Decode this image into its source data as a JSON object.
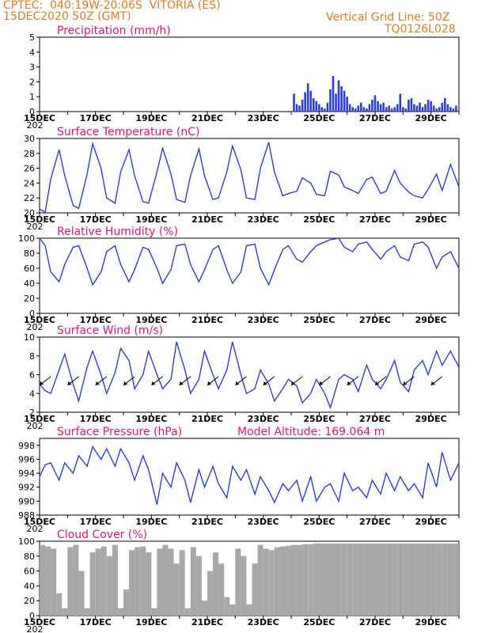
{
  "header": {
    "line1": "CPTEC:  040:19W-20:06S  VITORIA (ES)",
    "line2": "15DEC2020 50Z (GMT)",
    "right1": "Vertical Grid Line: 50Z",
    "right2": "TQ0126L028"
  },
  "colors": {
    "header": "#e07c1c",
    "title": "#e0137c",
    "line": "#2a3fd6",
    "cloud": "#a8a8a8"
  },
  "x_ticks": [
    "15DEC",
    "17DEC",
    "19DEC",
    "21DEC",
    "23DEC",
    "25DEC",
    "27DEC",
    "29DEC"
  ],
  "x_sub_label": "202",
  "chart_data": [
    {
      "type": "bar",
      "title": "Precipitation (mm/h)",
      "ylim": [
        0,
        5
      ],
      "y_ticks": [
        "0",
        "1",
        "2",
        "3",
        "4",
        "5"
      ],
      "x": [
        24.1,
        24.2,
        24.3,
        24.4,
        24.5,
        24.6,
        24.7,
        24.8,
        24.9,
        25.0,
        25.1,
        25.2,
        25.3,
        25.4,
        25.5,
        25.6,
        25.7,
        25.8,
        25.9,
        26.0,
        26.1,
        26.2,
        26.3,
        26.4,
        26.5,
        26.6,
        26.7,
        26.8,
        26.9,
        27.0,
        27.1,
        27.2,
        27.3,
        27.4,
        27.5,
        27.6,
        27.7,
        27.8,
        27.9,
        28.0,
        28.1,
        28.2,
        28.3,
        28.4,
        28.5,
        28.6,
        28.7,
        28.8,
        28.9,
        29.0,
        29.1,
        29.2,
        29.3,
        29.4,
        29.5,
        29.6,
        29.7,
        29.8,
        29.9
      ],
      "values": [
        1.2,
        0.5,
        0.4,
        0.8,
        1.3,
        1.9,
        1.4,
        0.9,
        0.7,
        0.5,
        0.3,
        0.2,
        0.6,
        1.5,
        2.4,
        1.2,
        2.1,
        1.7,
        1.4,
        1.0,
        0.5,
        0.3,
        0.2,
        0.4,
        0.6,
        0.3,
        0.2,
        0.5,
        0.8,
        1.1,
        0.7,
        0.5,
        0.6,
        0.3,
        0.4,
        0.2,
        0.3,
        0.5,
        1.2,
        0.3,
        0.2,
        0.8,
        0.9,
        0.5,
        0.4,
        0.6,
        0.3,
        0.5,
        0.8,
        0.7,
        0.4,
        0.2,
        0.3,
        0.6,
        0.9,
        0.5,
        0.3,
        0.2,
        0.4
      ]
    },
    {
      "type": "line",
      "title": "Surface Temperature (nC)",
      "ylim": [
        20,
        30
      ],
      "y_ticks": [
        "20",
        "22",
        "24",
        "26",
        "28",
        "30"
      ],
      "x": [
        15.0,
        15.2,
        15.4,
        15.7,
        15.9,
        16.2,
        16.4,
        16.7,
        16.9,
        17.2,
        17.4,
        17.7,
        17.9,
        18.2,
        18.4,
        18.7,
        18.9,
        19.2,
        19.4,
        19.7,
        19.9,
        20.2,
        20.4,
        20.7,
        20.9,
        21.2,
        21.4,
        21.7,
        21.9,
        22.2,
        22.4,
        22.7,
        22.9,
        23.2,
        23.4,
        23.7,
        23.9,
        24.2,
        24.4,
        24.7,
        24.9,
        25.2,
        25.4,
        25.7,
        25.9,
        26.2,
        26.4,
        26.7,
        26.9,
        27.2,
        27.4,
        27.7,
        27.9,
        28.2,
        28.4,
        28.7,
        28.9,
        29.2,
        29.4,
        29.7,
        30.0
      ],
      "values": [
        20.5,
        20.1,
        24.5,
        28.5,
        25.0,
        21.0,
        20.6,
        25.2,
        29.3,
        26.0,
        22.0,
        21.3,
        25.5,
        28.5,
        25.0,
        21.5,
        21.3,
        25.5,
        28.7,
        25.2,
        21.8,
        21.4,
        25.0,
        28.6,
        25.0,
        21.8,
        22.0,
        25.5,
        29.0,
        25.8,
        22.0,
        21.8,
        26.0,
        29.5,
        25.5,
        22.3,
        22.6,
        22.9,
        24.7,
        24.0,
        22.5,
        22.3,
        25.6,
        25.1,
        23.5,
        23.0,
        22.6,
        24.5,
        24.8,
        22.6,
        22.9,
        25.7,
        24.0,
        22.8,
        22.3,
        22.0,
        23.2,
        25.2,
        23.0,
        26.5,
        23.5
      ]
    },
    {
      "type": "line",
      "title": "Relative Humidity (%)",
      "ylim": [
        0,
        100
      ],
      "y_ticks": [
        "0",
        "20",
        "40",
        "60",
        "80",
        "100"
      ],
      "x": [
        15.0,
        15.2,
        15.4,
        15.7,
        15.9,
        16.2,
        16.4,
        16.7,
        16.9,
        17.2,
        17.4,
        17.7,
        17.9,
        18.2,
        18.4,
        18.7,
        18.9,
        19.2,
        19.4,
        19.7,
        19.9,
        20.2,
        20.4,
        20.7,
        20.9,
        21.2,
        21.4,
        21.7,
        21.9,
        22.2,
        22.4,
        22.7,
        22.9,
        23.2,
        23.4,
        23.7,
        23.9,
        24.2,
        24.4,
        24.7,
        24.9,
        25.2,
        25.4,
        25.7,
        25.9,
        26.2,
        26.4,
        26.7,
        26.9,
        27.2,
        27.4,
        27.7,
        27.9,
        28.2,
        28.4,
        28.7,
        28.9,
        29.2,
        29.4,
        29.7,
        30.0
      ],
      "values": [
        100,
        90,
        55,
        42,
        65,
        88,
        90,
        60,
        38,
        55,
        82,
        90,
        65,
        42,
        58,
        88,
        85,
        60,
        40,
        58,
        90,
        92,
        65,
        42,
        58,
        85,
        90,
        58,
        40,
        55,
        90,
        92,
        60,
        38,
        58,
        85,
        90,
        72,
        68,
        82,
        90,
        95,
        98,
        100,
        88,
        82,
        92,
        95,
        85,
        72,
        82,
        90,
        75,
        70,
        92,
        95,
        88,
        60,
        75,
        82,
        60
      ]
    },
    {
      "type": "line",
      "title": "Surface Wind (m/s)",
      "ylim": [
        2,
        10
      ],
      "y_ticks": [
        "2",
        "4",
        "6",
        "8",
        "10"
      ],
      "x": [
        15.0,
        15.2,
        15.4,
        15.7,
        15.9,
        16.2,
        16.4,
        16.7,
        16.9,
        17.2,
        17.4,
        17.7,
        17.9,
        18.2,
        18.4,
        18.7,
        18.9,
        19.2,
        19.4,
        19.7,
        19.9,
        20.2,
        20.4,
        20.7,
        20.9,
        21.2,
        21.4,
        21.7,
        21.9,
        22.2,
        22.4,
        22.7,
        22.9,
        23.2,
        23.4,
        23.7,
        23.9,
        24.2,
        24.4,
        24.7,
        24.9,
        25.2,
        25.4,
        25.7,
        25.9,
        26.2,
        26.4,
        26.7,
        26.9,
        27.2,
        27.4,
        27.7,
        27.9,
        28.2,
        28.4,
        28.7,
        28.9,
        29.2,
        29.4,
        29.7,
        30.0
      ],
      "values": [
        5.0,
        4.3,
        4.0,
        6.5,
        8.2,
        5.0,
        3.2,
        6.8,
        8.5,
        6.0,
        4.0,
        6.2,
        8.8,
        7.5,
        4.5,
        6.0,
        8.5,
        6.0,
        4.5,
        5.5,
        9.5,
        6.5,
        4.0,
        5.5,
        8.5,
        6.0,
        4.5,
        6.5,
        9.5,
        6.0,
        4.0,
        4.5,
        6.5,
        5.0,
        3.2,
        4.5,
        5.5,
        4.8,
        3.0,
        4.0,
        5.5,
        4.0,
        2.5,
        5.5,
        6.0,
        5.5,
        4.2,
        7.0,
        5.5,
        4.5,
        5.5,
        7.5,
        5.2,
        4.2,
        6.5,
        7.5,
        6.0,
        8.5,
        7.0,
        8.5,
        6.8
      ]
    },
    {
      "type": "line",
      "title": "Surface Pressure (hPa)",
      "annotation": "Model Altitude: 169.064  m",
      "ylim": [
        988,
        999
      ],
      "y_ticks": [
        "988",
        "990",
        "992",
        "994",
        "996",
        "998"
      ],
      "x": [
        15.0,
        15.2,
        15.4,
        15.7,
        15.9,
        16.2,
        16.4,
        16.7,
        16.9,
        17.2,
        17.4,
        17.7,
        17.9,
        18.2,
        18.4,
        18.7,
        18.9,
        19.2,
        19.4,
        19.7,
        19.9,
        20.2,
        20.4,
        20.7,
        20.9,
        21.2,
        21.4,
        21.7,
        21.9,
        22.2,
        22.4,
        22.7,
        22.9,
        23.2,
        23.4,
        23.7,
        23.9,
        24.2,
        24.4,
        24.7,
        24.9,
        25.2,
        25.4,
        25.7,
        25.9,
        26.2,
        26.4,
        26.7,
        26.9,
        27.2,
        27.4,
        27.7,
        27.9,
        28.2,
        28.4,
        28.7,
        28.9,
        29.2,
        29.4,
        29.7,
        30.0
      ],
      "values": [
        993.5,
        995.2,
        995.5,
        993.0,
        995.5,
        994.0,
        996.5,
        995.0,
        997.8,
        996.0,
        997.5,
        995.0,
        997.5,
        995.5,
        993.0,
        996.5,
        994.5,
        989.5,
        994.0,
        992.0,
        995.5,
        993.0,
        989.8,
        994.5,
        992.0,
        995.0,
        992.5,
        990.5,
        995.0,
        993.0,
        994.5,
        991.0,
        993.5,
        991.5,
        989.8,
        992.5,
        991.5,
        993.0,
        990.0,
        993.5,
        990.0,
        992.0,
        992.5,
        990.0,
        994.0,
        991.5,
        992.0,
        990.5,
        993.0,
        991.0,
        994.0,
        991.5,
        993.5,
        991.5,
        992.5,
        990.5,
        995.5,
        992.0,
        997.0,
        993.0,
        995.5
      ]
    },
    {
      "type": "bar",
      "title": "Cloud Cover (%)",
      "ylim": [
        0,
        100
      ],
      "y_ticks": [
        "0",
        "20",
        "40",
        "60",
        "80",
        "100"
      ],
      "x": [
        15.1,
        15.3,
        15.5,
        15.7,
        15.9,
        16.1,
        16.3,
        16.5,
        16.7,
        16.9,
        17.1,
        17.3,
        17.5,
        17.7,
        17.9,
        18.1,
        18.3,
        18.5,
        18.7,
        18.9,
        19.1,
        19.3,
        19.5,
        19.7,
        19.9,
        20.1,
        20.3,
        20.5,
        20.7,
        20.9,
        21.1,
        21.3,
        21.5,
        21.7,
        21.9,
        22.1,
        22.3,
        22.5,
        22.7,
        22.9,
        23.1,
        23.3,
        23.5,
        23.7,
        23.9,
        24.1,
        24.3,
        24.5,
        24.7,
        24.9,
        25.1,
        25.3,
        25.5,
        25.7,
        25.9,
        26.1,
        26.3,
        26.5,
        26.7,
        26.9,
        27.1,
        27.3,
        27.5,
        27.7,
        27.9,
        28.1,
        28.3,
        28.5,
        28.7,
        28.9,
        29.1,
        29.3,
        29.5,
        29.7,
        29.9
      ],
      "values": [
        95,
        93,
        90,
        30,
        10,
        92,
        95,
        60,
        10,
        85,
        90,
        93,
        80,
        95,
        10,
        35,
        88,
        92,
        93,
        85,
        10,
        90,
        95,
        90,
        70,
        88,
        10,
        92,
        80,
        20,
        60,
        85,
        70,
        25,
        15,
        90,
        80,
        15,
        70,
        95,
        90,
        88,
        92,
        93,
        94,
        95,
        95,
        96,
        96,
        97,
        97,
        97,
        97,
        97,
        97,
        97,
        97,
        97,
        97,
        97,
        97,
        97,
        97,
        97,
        97,
        97,
        97,
        97,
        97,
        97,
        97,
        97,
        97,
        97,
        97
      ]
    }
  ]
}
